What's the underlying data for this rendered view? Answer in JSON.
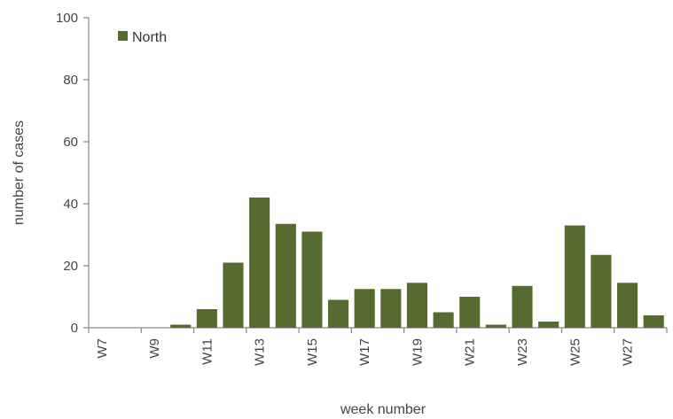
{
  "chart_data": {
    "type": "bar",
    "title": "",
    "xlabel": "week number",
    "ylabel": "number of cases",
    "ylim": [
      0,
      100
    ],
    "yticks": [
      0,
      20,
      40,
      60,
      80,
      100
    ],
    "grid": false,
    "legend_position": "top-left",
    "categories": [
      "W7",
      "W8",
      "W9",
      "W10",
      "W11",
      "W12",
      "W13",
      "W14",
      "W15",
      "W16",
      "W17",
      "W18",
      "W19",
      "W20",
      "W21",
      "W22",
      "W23",
      "W24",
      "W25",
      "W26",
      "W27",
      "W28"
    ],
    "tick_labels": [
      "W7",
      "",
      "W9",
      "",
      "W11",
      "",
      "W13",
      "",
      "W15",
      "",
      "W17",
      "",
      "W19",
      "",
      "W21",
      "",
      "W23",
      "",
      "W25",
      "",
      "W27",
      ""
    ],
    "series": [
      {
        "name": "North",
        "color": "#556b2f",
        "values": [
          0,
          0,
          0,
          1,
          6,
          21,
          42,
          33.5,
          31,
          9,
          12.5,
          12.5,
          14.5,
          5,
          10,
          1,
          13.5,
          2,
          33,
          23.5,
          14.5,
          4
        ]
      }
    ]
  }
}
